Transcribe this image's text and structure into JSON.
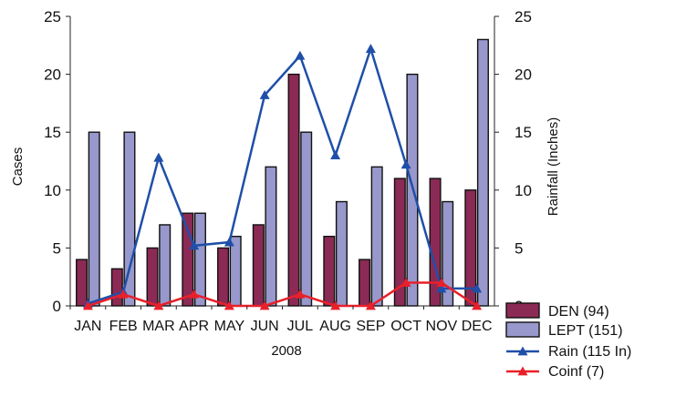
{
  "chart_data": {
    "type": "bar",
    "categories": [
      "JAN",
      "FEB",
      "MAR",
      "APR",
      "MAY",
      "JUN",
      "JUL",
      "AUG",
      "SEP",
      "OCT",
      "NOV",
      "DEC"
    ],
    "xlabel": "2008",
    "ylabel": "Cases",
    "y2label": "Rainfall (Inches)",
    "ylim": [
      0,
      25
    ],
    "y2lim": [
      0,
      25
    ],
    "yticks": [
      0,
      5,
      10,
      15,
      20,
      25
    ],
    "y2ticks": [
      0,
      5,
      10,
      15,
      20,
      25
    ],
    "grid": false,
    "legend_position": "bottom-right",
    "bar_series": [
      {
        "name": "DEN (94)",
        "color": "#8b2a55",
        "values": [
          4,
          3.2,
          5,
          8,
          5,
          7,
          20,
          6,
          4,
          11,
          11,
          10
        ]
      },
      {
        "name": "LEPT (151)",
        "color": "#9898cc",
        "values": [
          15,
          15,
          7,
          8,
          6,
          12,
          15,
          9,
          12,
          20,
          9,
          23
        ]
      }
    ],
    "line_series": [
      {
        "name": "Rain (115 In)",
        "color": "#1f4fa8",
        "axis": "right",
        "values": [
          0.2,
          1.2,
          12.8,
          5.2,
          5.5,
          18.2,
          21.6,
          13.0,
          22.2,
          12.2,
          1.5,
          1.5
        ]
      },
      {
        "name": "Coinf (7)",
        "color": "#e8202a",
        "axis": "left",
        "values": [
          0,
          1,
          0,
          1,
          0,
          0,
          1,
          0,
          0,
          2,
          2,
          0
        ]
      }
    ]
  }
}
